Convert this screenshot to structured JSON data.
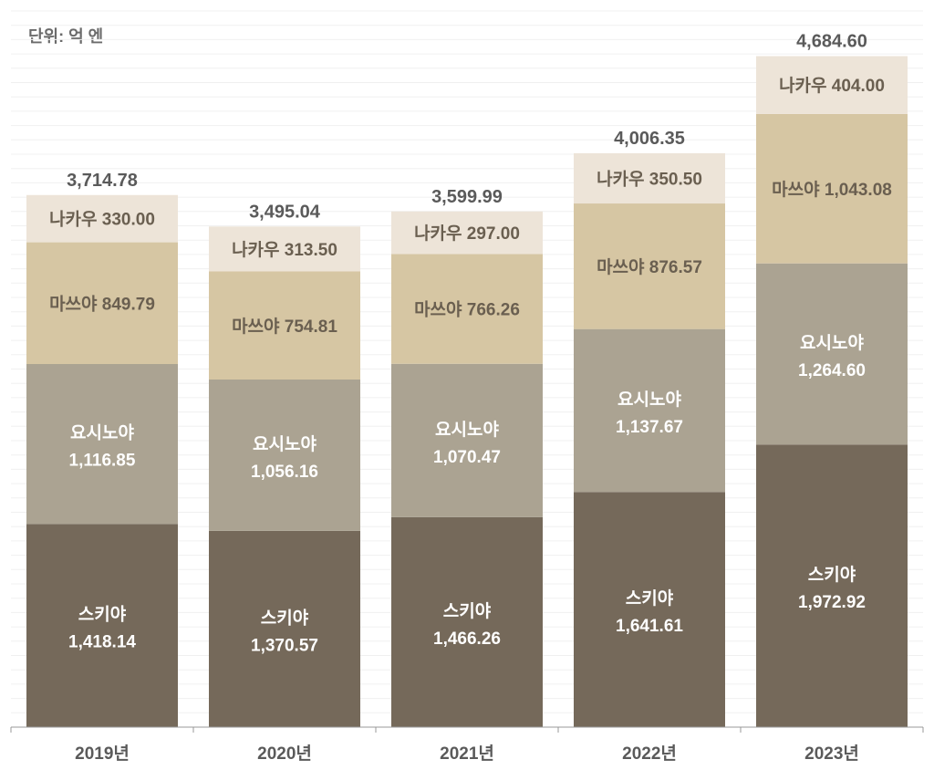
{
  "chart_data": {
    "type": "bar",
    "stacked": true,
    "unit_label": "단위: 억 엔",
    "categories": [
      "2019년",
      "2020년",
      "2021년",
      "2022년",
      "2023년"
    ],
    "series": [
      {
        "name": "스키야",
        "color": "#75695a",
        "text_color": "#ffffff",
        "values": [
          1418.14,
          1370.57,
          1466.26,
          1641.61,
          1972.92
        ]
      },
      {
        "name": "요시노야",
        "color": "#aba392",
        "text_color": "#ffffff",
        "values": [
          1116.85,
          1056.16,
          1070.47,
          1137.67,
          1264.6
        ]
      },
      {
        "name": "마쓰야",
        "color": "#d6c6a3",
        "text_color": "#6a5f50",
        "values": [
          849.79,
          754.81,
          766.26,
          876.57,
          1043.08
        ]
      },
      {
        "name": "나카우",
        "color": "#ede4d8",
        "text_color": "#6a5f50",
        "values": [
          330.0,
          313.5,
          297.0,
          350.5,
          404.0
        ]
      }
    ],
    "totals": [
      3714.78,
      3495.04,
      3599.99,
      4006.35,
      4684.6
    ],
    "ylim": [
      0,
      5000
    ],
    "grid": true,
    "xlabel": "",
    "ylabel": ""
  }
}
